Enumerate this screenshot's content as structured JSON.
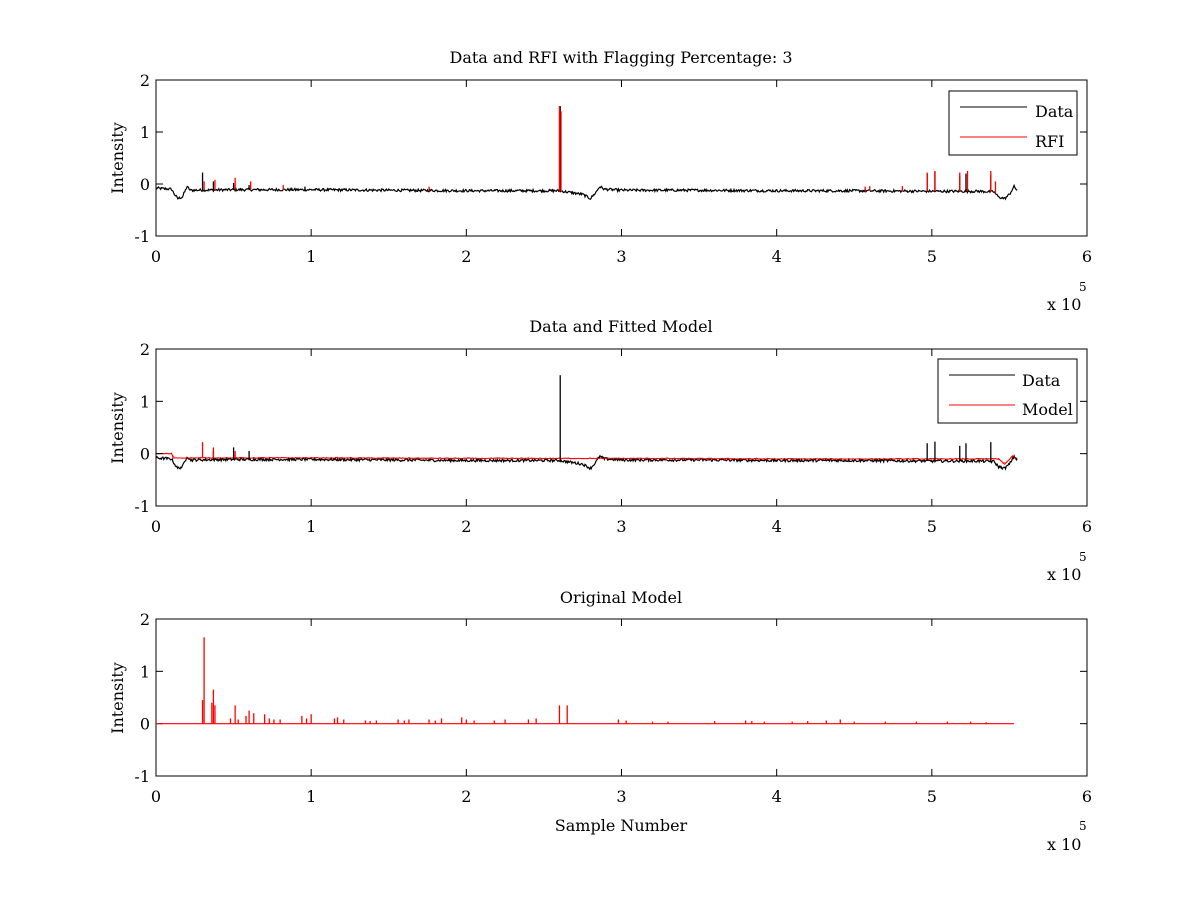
{
  "chart_data": [
    {
      "type": "line",
      "title": "Data and RFI with Flagging Percentage: 3",
      "xlabel": "",
      "ylabel": "Intensity",
      "xlim": [
        0,
        600000
      ],
      "ylim": [
        -1,
        2
      ],
      "xticks": [
        0,
        1,
        2,
        3,
        4,
        5,
        6
      ],
      "yticks": [
        -1,
        0,
        1,
        2
      ],
      "x_multiplier_label": "x 10",
      "x_multiplier_exp": "5",
      "legend": "top-right",
      "baseline": [
        [
          0,
          -0.08
        ],
        [
          10000,
          -0.1
        ],
        [
          12000,
          -0.2
        ],
        [
          14000,
          -0.28
        ],
        [
          17000,
          -0.25
        ],
        [
          20000,
          -0.05
        ],
        [
          22000,
          -0.12
        ],
        [
          50000,
          -0.11
        ],
        [
          100000,
          -0.11
        ],
        [
          150000,
          -0.12
        ],
        [
          200000,
          -0.13
        ],
        [
          260000,
          -0.13
        ],
        [
          275000,
          -0.2
        ],
        [
          280000,
          -0.28
        ],
        [
          283000,
          -0.18
        ],
        [
          286000,
          -0.05
        ],
        [
          289000,
          -0.1
        ],
        [
          300000,
          -0.12
        ],
        [
          350000,
          -0.12
        ],
        [
          400000,
          -0.13
        ],
        [
          450000,
          -0.13
        ],
        [
          500000,
          -0.14
        ],
        [
          530000,
          -0.14
        ],
        [
          540000,
          -0.15
        ],
        [
          543000,
          -0.25
        ],
        [
          547000,
          -0.28
        ],
        [
          550000,
          -0.2
        ],
        [
          553000,
          -0.05
        ],
        [
          555000,
          -0.12
        ]
      ],
      "series": [
        {
          "name": "Data",
          "color": "#000000",
          "spikes": [
            [
              30000,
              0.22
            ],
            [
              37000,
              0.05
            ],
            [
              50000,
              0.02
            ],
            [
              60000,
              -0.02
            ],
            [
              96000,
              -0.05
            ],
            [
              260500,
              1.5
            ],
            [
              497000,
              0.2
            ],
            [
              502000,
              0.23
            ],
            [
              518000,
              0.15
            ],
            [
              522000,
              0.2
            ],
            [
              538000,
              0.18
            ]
          ]
        },
        {
          "name": "RFI",
          "color": "#ff0000",
          "spikes": [
            [
              31000,
              0.05
            ],
            [
              38000,
              0.08
            ],
            [
              51000,
              0.12
            ],
            [
              61000,
              0.05
            ],
            [
              82000,
              -0.02
            ],
            [
              176000,
              -0.05
            ],
            [
              260000,
              1.5
            ],
            [
              261000,
              1.4
            ],
            [
              457000,
              -0.05
            ],
            [
              460000,
              -0.04
            ],
            [
              481000,
              -0.04
            ],
            [
              497000,
              0.22
            ],
            [
              502000,
              0.25
            ],
            [
              518000,
              0.22
            ],
            [
              523000,
              0.25
            ],
            [
              538000,
              0.25
            ],
            [
              541000,
              0.05
            ]
          ]
        }
      ]
    },
    {
      "type": "line",
      "title": "Data and Fitted Model",
      "xlabel": "",
      "ylabel": "Intensity",
      "xlim": [
        0,
        600000
      ],
      "ylim": [
        -1,
        2
      ],
      "xticks": [
        0,
        1,
        2,
        3,
        4,
        5,
        6
      ],
      "yticks": [
        -1,
        0,
        1,
        2
      ],
      "x_multiplier_label": "x 10",
      "x_multiplier_exp": "5",
      "legend": "top-right",
      "baseline": [
        [
          0,
          -0.08
        ],
        [
          10000,
          -0.1
        ],
        [
          12000,
          -0.2
        ],
        [
          14000,
          -0.28
        ],
        [
          17000,
          -0.25
        ],
        [
          20000,
          -0.05
        ],
        [
          22000,
          -0.12
        ],
        [
          50000,
          -0.11
        ],
        [
          100000,
          -0.11
        ],
        [
          150000,
          -0.12
        ],
        [
          200000,
          -0.13
        ],
        [
          260000,
          -0.13
        ],
        [
          275000,
          -0.2
        ],
        [
          280000,
          -0.28
        ],
        [
          283000,
          -0.18
        ],
        [
          286000,
          -0.05
        ],
        [
          289000,
          -0.1
        ],
        [
          300000,
          -0.12
        ],
        [
          350000,
          -0.12
        ],
        [
          400000,
          -0.13
        ],
        [
          450000,
          -0.13
        ],
        [
          500000,
          -0.14
        ],
        [
          530000,
          -0.14
        ],
        [
          540000,
          -0.15
        ],
        [
          543000,
          -0.25
        ],
        [
          547000,
          -0.28
        ],
        [
          550000,
          -0.2
        ],
        [
          553000,
          -0.05
        ],
        [
          555000,
          -0.12
        ]
      ],
      "series": [
        {
          "name": "Data",
          "color": "#000000",
          "spikes": [
            [
              37000,
              0.05
            ],
            [
              50000,
              0.12
            ],
            [
              60000,
              0.05
            ],
            [
              260500,
              1.5
            ],
            [
              497000,
              0.2
            ],
            [
              502000,
              0.23
            ],
            [
              518000,
              0.15
            ],
            [
              522000,
              0.2
            ],
            [
              538000,
              0.22
            ]
          ]
        },
        {
          "name": "Model",
          "color": "#ff0000",
          "points": [
            [
              0,
              0
            ],
            [
              10000,
              0
            ],
            [
              11000,
              -0.08
            ],
            [
              100000,
              -0.08
            ],
            [
              200000,
              -0.09
            ],
            [
              300000,
              -0.09
            ],
            [
              400000,
              -0.1
            ],
            [
              500000,
              -0.1
            ],
            [
              540000,
              -0.1
            ],
            [
              543000,
              -0.1
            ],
            [
              547000,
              -0.2
            ],
            [
              552000,
              -0.05
            ],
            [
              555000,
              -0.1
            ]
          ],
          "spikes": [
            [
              30000,
              0.22
            ],
            [
              37000,
              0.12
            ],
            [
              51000,
              0.05
            ]
          ]
        }
      ]
    },
    {
      "type": "line",
      "title": "Original Model",
      "xlabel": "Sample Number",
      "ylabel": "Intensity",
      "xlim": [
        0,
        600000
      ],
      "ylim": [
        -1,
        2
      ],
      "xticks": [
        0,
        1,
        2,
        3,
        4,
        5,
        6
      ],
      "yticks": [
        -1,
        0,
        1,
        2
      ],
      "x_multiplier_label": "x 10",
      "x_multiplier_exp": "5",
      "series": [
        {
          "color": "#ff0000",
          "baseline_value": 0,
          "x_range": [
            0,
            553000
          ],
          "spikes": [
            [
              30000,
              0.45
            ],
            [
              31000,
              1.65
            ],
            [
              36000,
              0.4
            ],
            [
              37000,
              0.65
            ],
            [
              38000,
              0.35
            ],
            [
              48000,
              0.1
            ],
            [
              51000,
              0.35
            ],
            [
              53000,
              0.08
            ],
            [
              58000,
              0.15
            ],
            [
              60000,
              0.25
            ],
            [
              63000,
              0.2
            ],
            [
              70000,
              0.18
            ],
            [
              73000,
              0.1
            ],
            [
              76000,
              0.08
            ],
            [
              80000,
              0.08
            ],
            [
              94000,
              0.15
            ],
            [
              97000,
              0.1
            ],
            [
              100000,
              0.18
            ],
            [
              115000,
              0.1
            ],
            [
              117000,
              0.12
            ],
            [
              121000,
              0.08
            ],
            [
              135000,
              0.06
            ],
            [
              138000,
              0.05
            ],
            [
              142000,
              0.06
            ],
            [
              156000,
              0.08
            ],
            [
              160000,
              0.06
            ],
            [
              163000,
              0.08
            ],
            [
              176000,
              0.08
            ],
            [
              180000,
              0.06
            ],
            [
              184000,
              0.1
            ],
            [
              197000,
              0.12
            ],
            [
              200000,
              0.08
            ],
            [
              205000,
              0.06
            ],
            [
              218000,
              0.06
            ],
            [
              225000,
              0.08
            ],
            [
              240000,
              0.08
            ],
            [
              245000,
              0.1
            ],
            [
              260000,
              0.35
            ],
            [
              265000,
              0.35
            ],
            [
              298000,
              0.08
            ],
            [
              303000,
              0.06
            ],
            [
              320000,
              0.04
            ],
            [
              330000,
              0.04
            ],
            [
              360000,
              0.05
            ],
            [
              380000,
              0.06
            ],
            [
              384000,
              0.05
            ],
            [
              392000,
              0.04
            ],
            [
              410000,
              0.04
            ],
            [
              420000,
              0.05
            ],
            [
              432000,
              0.06
            ],
            [
              441000,
              0.08
            ],
            [
              450000,
              0.04
            ],
            [
              470000,
              0.04
            ],
            [
              490000,
              0.04
            ],
            [
              510000,
              0.04
            ],
            [
              525000,
              0.04
            ],
            [
              535000,
              0.03
            ]
          ]
        }
      ]
    }
  ]
}
